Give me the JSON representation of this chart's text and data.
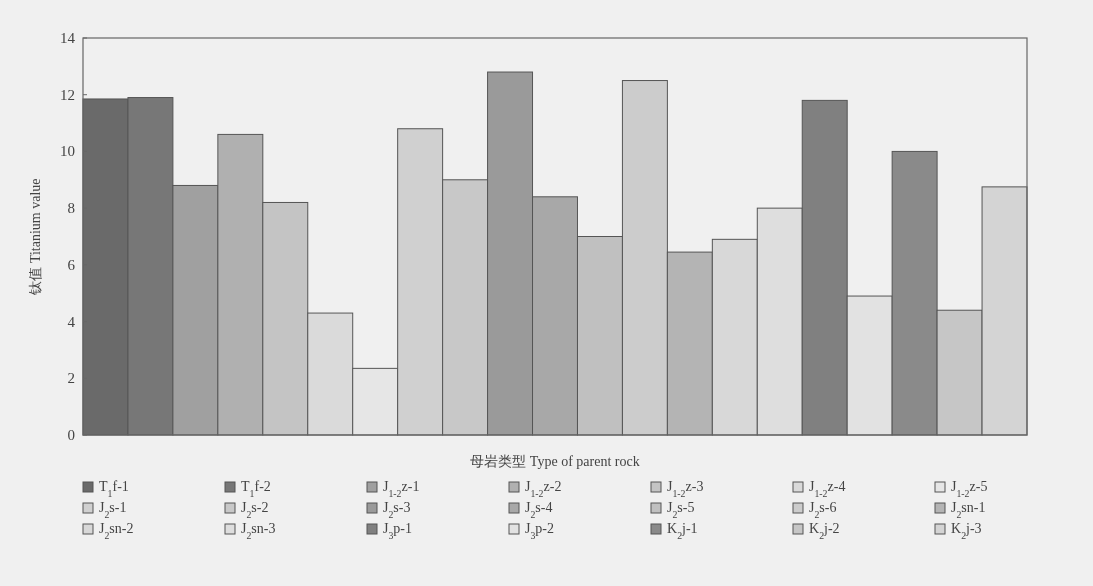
{
  "chart_data": {
    "type": "bar",
    "stacked": true,
    "xlabel": "母岩类型  Type of parent rock",
    "ylabel": "钛值  Titanium value",
    "categories": [
      null,
      null,
      null,
      null,
      null,
      null,
      null,
      null,
      null,
      null,
      null,
      null,
      null,
      null,
      null,
      null,
      null,
      null,
      null,
      null,
      null
    ],
    "ylim": [
      0,
      14
    ],
    "yticks": [
      0,
      2,
      4,
      6,
      8,
      10,
      12,
      14
    ],
    "legend": "bottom",
    "tick_labels": "y",
    "series": [
      {
        "name": "T$_{1}$f-1",
        "color": "#6a6a6a",
        "values": [
          11.85,
          null,
          null,
          null,
          null,
          null,
          null,
          null,
          null,
          null,
          null,
          null,
          null,
          null,
          null,
          null,
          null,
          null,
          null,
          null,
          null
        ]
      },
      {
        "name": "T$_{1}$f-2",
        "color": "#777777",
        "values": [
          null,
          11.9,
          null,
          null,
          null,
          null,
          null,
          null,
          null,
          null,
          null,
          null,
          null,
          null,
          null,
          null,
          null,
          null,
          null,
          null,
          null
        ]
      },
      {
        "name": "J$_{1-2}$z-1",
        "color": "#a0a0a0",
        "values": [
          null,
          null,
          8.8,
          null,
          null,
          null,
          null,
          null,
          null,
          null,
          null,
          null,
          null,
          null,
          null,
          null,
          null,
          null,
          null,
          null,
          null
        ]
      },
      {
        "name": "J$_{1-2}$z-2",
        "color": "#b0b0b0",
        "values": [
          null,
          null,
          null,
          10.6,
          null,
          null,
          null,
          null,
          null,
          null,
          null,
          null,
          null,
          null,
          null,
          null,
          null,
          null,
          null,
          null,
          null
        ]
      },
      {
        "name": "J$_{1-2}$z-3",
        "color": "#c4c4c4",
        "values": [
          null,
          null,
          null,
          null,
          8.2,
          null,
          null,
          null,
          null,
          null,
          null,
          null,
          null,
          null,
          null,
          null,
          null,
          null,
          null,
          null,
          null
        ]
      },
      {
        "name": "J$_{1-2}$z-4",
        "color": "#dadada",
        "values": [
          null,
          null,
          null,
          null,
          null,
          4.3,
          null,
          null,
          null,
          null,
          null,
          null,
          null,
          null,
          null,
          null,
          null,
          null,
          null,
          null,
          null
        ]
      },
      {
        "name": "J$_{1-2}$z-5",
        "color": "#e6e6e6",
        "values": [
          null,
          null,
          null,
          null,
          null,
          null,
          2.35,
          null,
          null,
          null,
          null,
          null,
          null,
          null,
          null,
          null,
          null,
          null,
          null,
          null,
          null
        ]
      },
      {
        "name": "J$_{2}$s-1",
        "color": "#d0d0d0",
        "values": [
          null,
          null,
          null,
          null,
          null,
          null,
          null,
          10.8,
          null,
          null,
          null,
          null,
          null,
          null,
          null,
          null,
          null,
          null,
          null,
          null,
          null
        ]
      },
      {
        "name": "J$_{2}$s-2",
        "color": "#c8c8c8",
        "values": [
          null,
          null,
          null,
          null,
          null,
          null,
          null,
          null,
          9.0,
          null,
          null,
          null,
          null,
          null,
          null,
          null,
          null,
          null,
          null,
          null,
          null
        ]
      },
      {
        "name": "J$_{2}$s-3",
        "color": "#9a9a9a",
        "values": [
          null,
          null,
          null,
          null,
          null,
          null,
          null,
          null,
          null,
          12.8,
          null,
          null,
          null,
          null,
          null,
          null,
          null,
          null,
          null,
          null,
          null
        ]
      },
      {
        "name": "J$_{2}$s-4",
        "color": "#a8a8a8",
        "values": [
          null,
          null,
          null,
          null,
          null,
          null,
          null,
          null,
          null,
          null,
          8.4,
          null,
          null,
          null,
          null,
          null,
          null,
          null,
          null,
          null,
          null
        ]
      },
      {
        "name": "J$_{2}$s-5",
        "color": "#c0c0c0",
        "values": [
          null,
          null,
          null,
          null,
          null,
          null,
          null,
          null,
          null,
          null,
          null,
          7.0,
          null,
          null,
          null,
          null,
          null,
          null,
          null,
          null,
          null
        ]
      },
      {
        "name": "J$_{2}$s-6",
        "color": "#cccccc",
        "values": [
          null,
          null,
          null,
          null,
          null,
          null,
          null,
          null,
          null,
          null,
          null,
          null,
          12.5,
          null,
          null,
          null,
          null,
          null,
          null,
          null,
          null
        ]
      },
      {
        "name": "J$_{2}$sn-1",
        "color": "#b4b4b4",
        "values": [
          null,
          null,
          null,
          null,
          null,
          null,
          null,
          null,
          null,
          null,
          null,
          null,
          null,
          6.45,
          null,
          null,
          null,
          null,
          null,
          null,
          null
        ]
      },
      {
        "name": "J$_{2}$sn-2",
        "color": "#d8d8d8",
        "values": [
          null,
          null,
          null,
          null,
          null,
          null,
          null,
          null,
          null,
          null,
          null,
          null,
          null,
          null,
          6.9,
          null,
          null,
          null,
          null,
          null,
          null
        ]
      },
      {
        "name": "J$_{2}$sn-3",
        "color": "#dedede",
        "values": [
          null,
          null,
          null,
          null,
          null,
          null,
          null,
          null,
          null,
          null,
          null,
          null,
          null,
          null,
          null,
          8.0,
          null,
          null,
          null,
          null,
          null
        ]
      },
      {
        "name": "J$_{3}$p-1",
        "color": "#808080",
        "values": [
          null,
          null,
          null,
          null,
          null,
          null,
          null,
          null,
          null,
          null,
          null,
          null,
          null,
          null,
          null,
          null,
          11.8,
          null,
          null,
          null,
          null
        ]
      },
      {
        "name": "J$_{3}$p-2",
        "color": "#e2e2e2",
        "values": [
          null,
          null,
          null,
          null,
          null,
          null,
          null,
          null,
          null,
          null,
          null,
          null,
          null,
          null,
          null,
          null,
          null,
          4.9,
          null,
          null,
          null
        ]
      },
      {
        "name": "K$_{2}$j-1",
        "color": "#8a8a8a",
        "values": [
          null,
          null,
          null,
          null,
          null,
          null,
          null,
          null,
          null,
          null,
          null,
          null,
          null,
          null,
          null,
          null,
          null,
          null,
          10.0,
          null,
          null
        ]
      },
      {
        "name": "K$_{2}$j-2",
        "color": "#c6c6c6",
        "values": [
          null,
          null,
          null,
          null,
          null,
          null,
          null,
          null,
          null,
          null,
          null,
          null,
          null,
          null,
          null,
          null,
          null,
          null,
          null,
          4.4,
          null
        ]
      },
      {
        "name": "K$_{2}$j-3",
        "color": "#d4d4d4",
        "values": [
          null,
          null,
          null,
          null,
          null,
          null,
          null,
          null,
          null,
          null,
          null,
          null,
          null,
          null,
          null,
          null,
          null,
          null,
          null,
          null,
          8.75
        ]
      }
    ]
  }
}
